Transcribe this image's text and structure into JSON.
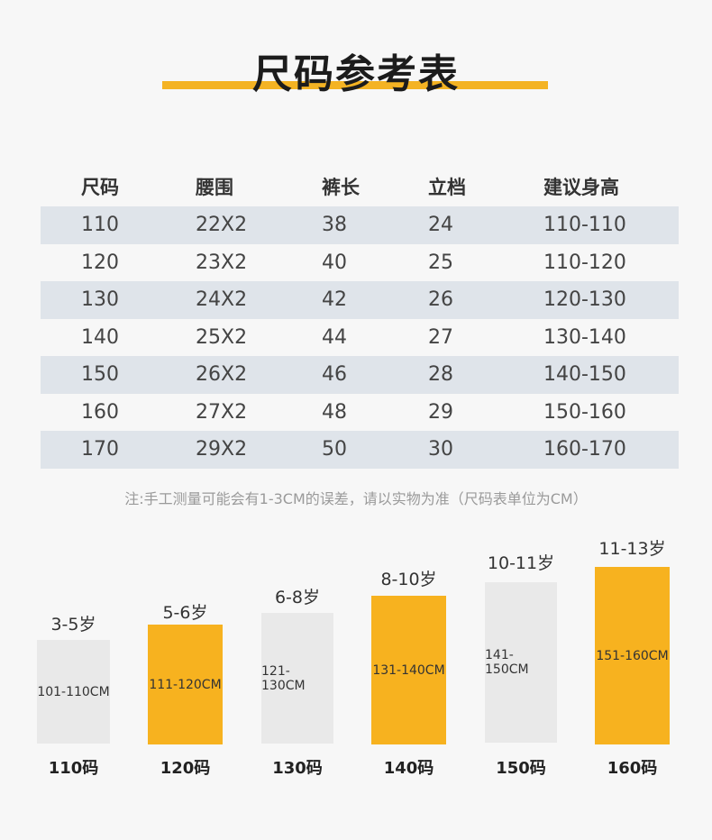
{
  "title": "尺码参考表",
  "table": {
    "headers": [
      "尺码",
      "腰围",
      "裤长",
      "立档",
      "建议身高"
    ],
    "rows": [
      [
        "110",
        "22X2",
        "38",
        "24",
        "110-110"
      ],
      [
        "120",
        "23X2",
        "40",
        "25",
        "110-120"
      ],
      [
        "130",
        "24X2",
        "42",
        "26",
        "120-130"
      ],
      [
        "140",
        "25X2",
        "44",
        "27",
        "130-140"
      ],
      [
        "150",
        "26X2",
        "46",
        "28",
        "140-150"
      ],
      [
        "160",
        "27X2",
        "48",
        "29",
        "150-160"
      ],
      [
        "170",
        "29X2",
        "50",
        "30",
        "160-170"
      ]
    ]
  },
  "note": "注:手工测量可能会有1-3CM的误差，请以实物为准（尺码表单位为CM）",
  "bars": [
    {
      "age": "3-5岁",
      "range": "101-110CM",
      "size": "110码",
      "color": "gray"
    },
    {
      "age": "5-6岁",
      "range": "111-120CM",
      "size": "120码",
      "color": "orange"
    },
    {
      "age": "6-8岁",
      "range": "121-130CM",
      "size": "130码",
      "color": "gray"
    },
    {
      "age": "8-10岁",
      "range": "131-140CM",
      "size": "140码",
      "color": "orange"
    },
    {
      "age": "10-11岁",
      "range": "141-150CM",
      "size": "150码",
      "color": "gray"
    },
    {
      "age": "11-13岁",
      "range": "151-160CM",
      "size": "160码",
      "color": "orange"
    }
  ],
  "colors": {
    "accent": "#f4b323",
    "bar_orange": "#f7b21f",
    "bar_gray": "#e9e9e9",
    "row_shade": "#dfe4ea"
  }
}
